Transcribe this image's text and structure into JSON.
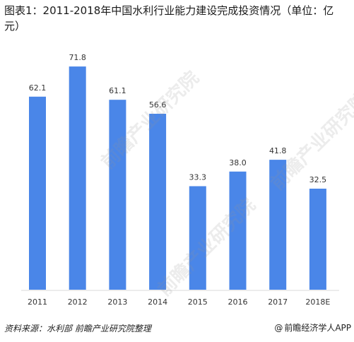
{
  "header": {
    "title": "图表1：2011-2018年中国水利行业能力建设完成投资情况（单位：亿元）"
  },
  "chart_data": {
    "type": "bar",
    "categories": [
      "2011",
      "2012",
      "2013",
      "2014",
      "2015",
      "2016",
      "2017",
      "2018E"
    ],
    "values": [
      62.1,
      71.8,
      61.1,
      56.6,
      33.3,
      38.0,
      41.8,
      32.5
    ],
    "value_labels": [
      "62.1",
      "71.8",
      "61.1",
      "56.6",
      "33.3",
      "38.0",
      "41.8",
      "32.5"
    ],
    "title": "图表1：2011-2018年中国水利行业能力建设完成投资情况（单位：亿元）",
    "xlabel": "",
    "ylabel": "",
    "ylim": [
      0,
      75
    ],
    "grid": false,
    "legend": "none",
    "bar_color": "#4a86e8"
  },
  "footer": {
    "source": "资料来源：水利部 前瞻产业研究院整理",
    "brand_symbol": "@",
    "brand": "前瞻经济学人APP"
  },
  "watermark": {
    "text": "前瞻产业研究院"
  }
}
